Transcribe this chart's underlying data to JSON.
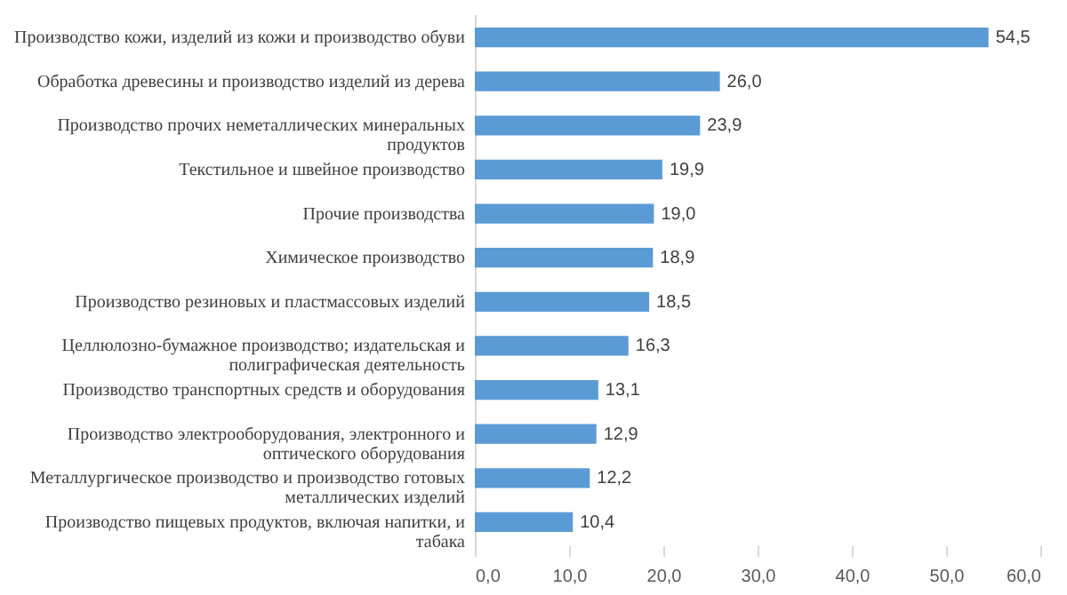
{
  "chart_data": {
    "type": "bar",
    "orientation": "horizontal",
    "categories": [
      "Производство кожи, изделий из кожи и  производство обуви",
      "Обработка древесины и производство изделий  из дерева",
      "Производство прочих неметаллических   минеральных продуктов",
      "Текстильное и швейное производство",
      "Прочие производства",
      "Химическое производство",
      "Производство резиновых и пластмассовых  изделий",
      "Целлюлозно-бумажное производство;  издательская и полиграфическая  деятельность",
      "Производство транспортных  средств и  оборудования",
      "Производство электрооборудования,  электронного и оптического оборудования",
      "Металлургическое производство и  производство готовых металлических  изделий",
      "Производство пищевых  продуктов, включая  напитки,  и табака"
    ],
    "values": [
      54.5,
      26.0,
      23.9,
      19.9,
      19.0,
      18.9,
      18.5,
      16.3,
      13.1,
      12.9,
      12.2,
      10.4
    ],
    "value_labels": [
      "54,5",
      "26,0",
      "23,9",
      "19,9",
      "19,0",
      "18,9",
      "18,5",
      "16,3",
      "13,1",
      "12,9",
      "12,2",
      "10,4"
    ],
    "color": "#5b9bd5",
    "xlim": [
      0,
      60
    ],
    "xticks": [
      {
        "value": 0,
        "label": "0,0"
      },
      {
        "value": 10,
        "label": "10,0"
      },
      {
        "value": 20,
        "label": "20,0"
      },
      {
        "value": 30,
        "label": "30,0"
      },
      {
        "value": 40,
        "label": "40,0"
      },
      {
        "value": 50,
        "label": "50,0"
      },
      {
        "value": 60,
        "label": "60,0"
      }
    ],
    "grid": false
  }
}
